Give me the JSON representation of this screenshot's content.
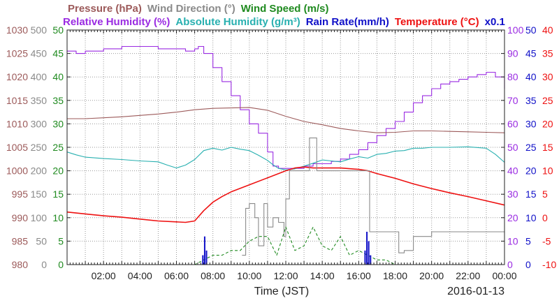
{
  "colors": {
    "pressure": "#9c5a5a",
    "wind_direction": "#8a8a8a",
    "wind_speed": "#1f8a1f",
    "relative_humidity": "#9a2be2",
    "absolute_humidity": "#28b0b0",
    "rain_rate": "#1010c8",
    "temperature": "#ee1111",
    "grid": "#9a9a9a"
  },
  "chart_data": {
    "type": "line",
    "header": {
      "row1": [
        {
          "key": "pressure",
          "text": "Pressure (hPa)"
        },
        {
          "key": "wind_direction",
          "text": "Wind Direction (°)"
        },
        {
          "key": "wind_speed",
          "text": "Wind Speed (m/s)"
        }
      ],
      "row2": [
        {
          "key": "relative_humidity",
          "text": "Relative Humidity (%)"
        },
        {
          "key": "absolute_humidity",
          "text": "Absolute Humidity (g/m³)"
        },
        {
          "key": "rain_rate",
          "text": "Rain Rate(mm/h)"
        },
        {
          "key": "temperature",
          "text": "Temperature (°C)"
        },
        {
          "key": "rain_rate",
          "text": "x0.1"
        }
      ]
    },
    "xlabel": "Time (JST)",
    "date": "2016-01-13",
    "x_unit": "hours",
    "xlim": [
      0,
      24
    ],
    "x_ticks": [
      {
        "x": 2,
        "label": "02:00"
      },
      {
        "x": 4,
        "label": "04:00"
      },
      {
        "x": 6,
        "label": "06:00"
      },
      {
        "x": 8,
        "label": "08:00"
      },
      {
        "x": 10,
        "label": "10:00"
      },
      {
        "x": 12,
        "label": "12:00"
      },
      {
        "x": 14,
        "label": "14:00"
      },
      {
        "x": 16,
        "label": "16:00"
      },
      {
        "x": 18,
        "label": "18:00"
      },
      {
        "x": 20,
        "label": "20:00"
      },
      {
        "x": 22,
        "label": "22:00"
      },
      {
        "x": 24,
        "label": "00:00"
      }
    ],
    "grid": true,
    "axes": {
      "left": [
        {
          "key": "pressure",
          "ylim": [
            980,
            1030
          ],
          "ticks": [
            "980",
            "985",
            "990",
            "995",
            "1000",
            "1005",
            "1010",
            "1015",
            "1020",
            "1025",
            "1030"
          ]
        },
        {
          "key": "wind_direction",
          "ylim": [
            0,
            500
          ],
          "ticks": [
            "0",
            "50",
            "100",
            "150",
            "200",
            "250",
            "300",
            "350",
            "400",
            "450",
            "500"
          ]
        },
        {
          "key": "wind_speed",
          "ylim": [
            0,
            50
          ],
          "ticks": [
            "0",
            "5",
            "10",
            "15",
            "20",
            "25",
            "30",
            "35",
            "40",
            "45",
            "50"
          ]
        }
      ],
      "right": [
        {
          "key": "relative_humidity",
          "ylim": [
            0,
            100
          ],
          "ticks": [
            "0",
            "10",
            "20",
            "30",
            "40",
            "50",
            "60",
            "70",
            "80",
            "90",
            "100"
          ]
        },
        {
          "key": "rain_rate",
          "ylim": [
            0,
            50
          ],
          "ticks": [
            "0",
            "5",
            "10",
            "15",
            "20",
            "25",
            "30",
            "35",
            "40",
            "45",
            "50"
          ]
        },
        {
          "key": "temperature",
          "ylim": [
            -10,
            40
          ],
          "ticks": [
            "-10",
            "-5",
            "0",
            "5",
            "10",
            "15",
            "20",
            "25",
            "30",
            "35",
            "40"
          ]
        }
      ]
    },
    "series": [
      {
        "key": "relative_humidity",
        "name": "Relative Humidity (%)",
        "axis": "relative_humidity",
        "style": "step",
        "x": [
          0,
          0.5,
          1,
          1.5,
          2,
          3,
          4,
          5,
          6,
          6.5,
          7,
          7.2,
          7.5,
          8,
          8.5,
          9,
          9.5,
          10,
          10.5,
          11,
          11.3,
          11.6,
          12,
          12.5,
          13,
          13.5,
          14,
          14.5,
          15,
          15.5,
          16,
          16.5,
          17,
          17.5,
          18,
          18.5,
          19,
          19.5,
          20,
          20.5,
          21,
          21.5,
          22,
          22.5,
          23,
          23.5,
          24
        ],
        "y": [
          91,
          90,
          91,
          91,
          92,
          93,
          93,
          92,
          92,
          91,
          92,
          93,
          90,
          84,
          78,
          72,
          66,
          60,
          56,
          48,
          42,
          41,
          41,
          41,
          42,
          43,
          43,
          44,
          45,
          47,
          49,
          52,
          55,
          58,
          61,
          65,
          69,
          72,
          75,
          77,
          78,
          79,
          80,
          81,
          82,
          80,
          75
        ]
      },
      {
        "key": "absolute_humidity",
        "name": "Absolute Humidity (g/m³)",
        "axis": "wind_speed",
        "style": "line",
        "x": [
          0,
          0.5,
          1,
          2,
          3,
          4,
          5,
          5.5,
          6,
          6.5,
          7,
          7.5,
          8,
          8.5,
          9,
          9.5,
          10,
          10.5,
          11,
          11.3,
          11.6,
          12,
          12.5,
          13,
          13.5,
          14,
          14.5,
          15,
          15.5,
          16,
          16.5,
          17,
          17.5,
          18,
          18.5,
          19,
          19.5,
          20,
          21,
          22,
          23,
          23.5,
          24
        ],
        "y": [
          24,
          23.4,
          22.9,
          22.6,
          22.4,
          22.1,
          21.9,
          21.2,
          20.6,
          21.2,
          22.4,
          24.3,
          24.8,
          24.4,
          25.0,
          24.6,
          24.3,
          23.3,
          22.2,
          21.3,
          20.5,
          20.2,
          20.4,
          21.0,
          21.6,
          22.3,
          22.1,
          21.9,
          22.5,
          23.0,
          22.7,
          23.5,
          23.7,
          24.2,
          24.3,
          24.8,
          24.8,
          25.0,
          25.0,
          25.1,
          24.8,
          23.5,
          21.8
        ]
      },
      {
        "key": "pressure",
        "name": "Pressure (hPa)",
        "axis": "pressure",
        "style": "line",
        "x": [
          0,
          1,
          2,
          3,
          4,
          5,
          6,
          7,
          8,
          9,
          10,
          11,
          12,
          13,
          14,
          15,
          16,
          17,
          18,
          19,
          20,
          21,
          22,
          23,
          24
        ],
        "y": [
          1011.1,
          1011.1,
          1011.3,
          1011.5,
          1011.8,
          1012.1,
          1012.5,
          1013.0,
          1013.3,
          1013.4,
          1013.5,
          1012.9,
          1011.6,
          1010.5,
          1009.8,
          1009.0,
          1008.5,
          1008.1,
          1008.2,
          1008.5,
          1008.5,
          1008.4,
          1008.3,
          1008.2,
          1008.1
        ]
      },
      {
        "key": "temperature",
        "name": "Temperature (°C)",
        "axis": "temperature",
        "style": "line",
        "x": [
          0,
          0.5,
          1,
          2,
          3,
          4,
          5,
          6,
          6.5,
          7,
          7.5,
          8,
          8.5,
          9,
          10,
          11,
          12,
          12.5,
          13,
          13.5,
          14,
          15,
          16,
          16.5,
          17,
          18,
          19,
          20,
          21,
          22,
          23,
          24
        ],
        "y": [
          1.2,
          1.0,
          0.8,
          0.4,
          0.1,
          -0.3,
          -0.7,
          -0.9,
          -1.0,
          -0.7,
          1.5,
          3.3,
          4.5,
          5.5,
          7.0,
          8.5,
          10.0,
          10.6,
          10.8,
          10.6,
          10.6,
          10.6,
          10.3,
          10.0,
          9.4,
          8.4,
          7.2,
          6.2,
          5.3,
          4.5,
          3.6,
          2.7
        ]
      },
      {
        "key": "wind_direction",
        "name": "Wind Direction (°)",
        "axis": "wind_direction",
        "style": "step",
        "x": [
          0,
          9.6,
          9.8,
          10.0,
          10.3,
          10.5,
          10.8,
          11.0,
          11.3,
          11.6,
          11.9,
          12.0,
          12.2,
          12.5,
          12.7,
          13.0,
          13.3,
          13.5,
          13.7,
          14.0,
          14.5,
          15.0,
          15.5,
          16.0,
          16.3,
          16.5,
          16.6,
          17.0,
          17.5,
          18.0,
          18.2,
          18.5,
          19.0,
          19.5,
          20.0,
          21.0,
          22.0,
          23.0,
          24.0
        ],
        "y": [
          null,
          20,
          120,
          130,
          100,
          40,
          130,
          80,
          100,
          90,
          60,
          140,
          200,
          200,
          200,
          200,
          270,
          270,
          200,
          200,
          200,
          200,
          200,
          200,
          200,
          200,
          70,
          70,
          70,
          70,
          25,
          30,
          60,
          60,
          70,
          70,
          70,
          70,
          70
        ]
      },
      {
        "key": "wind_speed",
        "name": "Wind Speed (m/s)",
        "axis": "wind_speed",
        "style": "dashed",
        "x": [
          0,
          6,
          7,
          7.5,
          8,
          8.5,
          9,
          9.5,
          10,
          10.5,
          11,
          11.5,
          12,
          12.5,
          13,
          13.5,
          14,
          14.5,
          15,
          15.5,
          16,
          16.5,
          17,
          17.5,
          18,
          19,
          20,
          24
        ],
        "y": [
          0,
          0,
          0,
          1,
          2,
          2,
          3,
          3,
          5,
          6,
          6,
          2,
          8,
          3,
          4,
          8,
          4,
          3,
          6,
          2,
          3,
          2,
          1,
          1,
          0,
          0,
          0,
          0
        ]
      },
      {
        "key": "rain_rate",
        "name": "Rain Rate(mm/h)",
        "axis": "rain_rate",
        "style": "bars",
        "x": [
          7.45,
          7.55,
          7.65,
          16.35,
          16.45,
          16.55,
          16.65
        ],
        "y": [
          2,
          6,
          3,
          3,
          7,
          5,
          2
        ]
      }
    ]
  }
}
